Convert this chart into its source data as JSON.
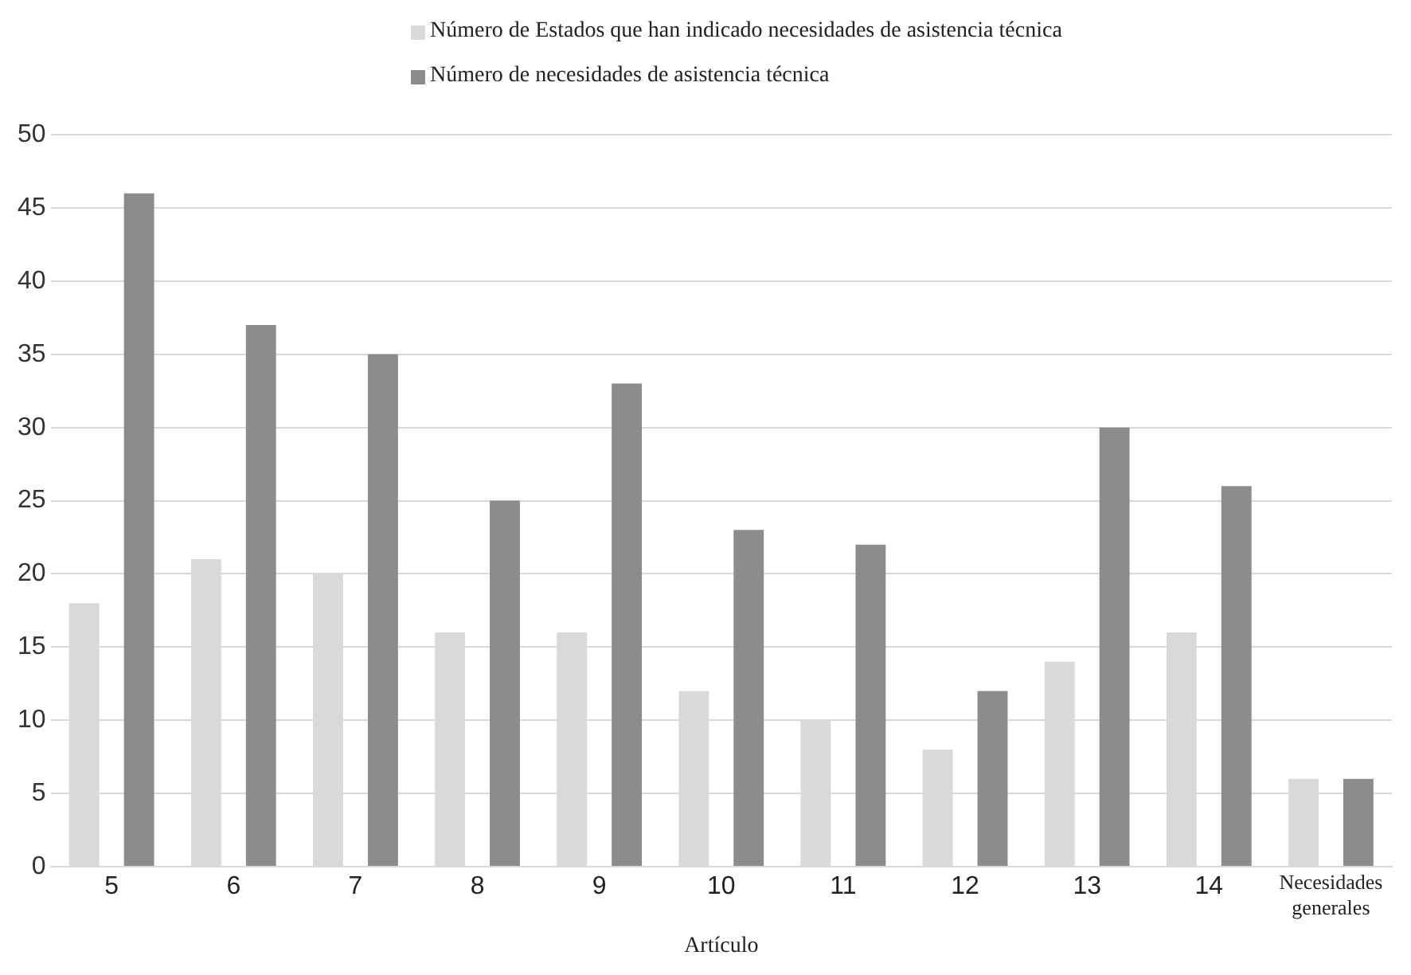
{
  "chart_data": {
    "type": "bar",
    "xlabel": "Artículo",
    "categories": [
      "5",
      "6",
      "7",
      "8",
      "9",
      "10",
      "11",
      "12",
      "13",
      "14",
      "Necesidades generales"
    ],
    "series": [
      {
        "name": "Número de Estados que han indicado necesidades de asistencia técnica",
        "color": "#d9d9d9",
        "values": [
          18,
          21,
          20,
          16,
          16,
          12,
          10,
          8,
          14,
          16,
          6
        ]
      },
      {
        "name": "Número de necesidades de asistencia técnica",
        "color": "#8c8c8c",
        "values": [
          46,
          37,
          35,
          25,
          33,
          23,
          22,
          12,
          30,
          26,
          6
        ]
      }
    ],
    "ylim": [
      0,
      50
    ],
    "yticks": [
      0,
      5,
      10,
      15,
      20,
      25,
      30,
      35,
      40,
      45,
      50
    ],
    "grid": "y",
    "legend": "top"
  }
}
